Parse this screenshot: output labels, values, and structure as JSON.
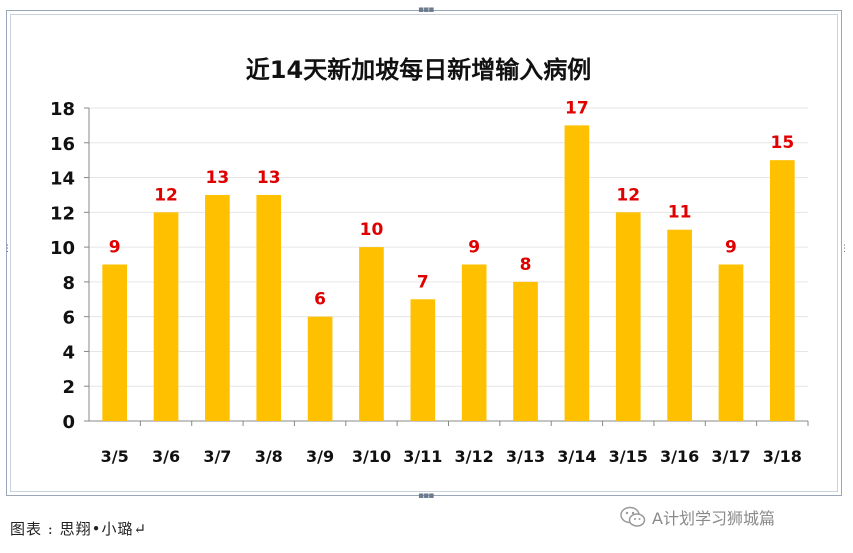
{
  "chart_data": {
    "type": "bar",
    "title": "近14天新加坡每日新增输入病例",
    "categories": [
      "3/5",
      "3/6",
      "3/7",
      "3/8",
      "3/9",
      "3/10",
      "3/11",
      "3/12",
      "3/13",
      "3/14",
      "3/15",
      "3/16",
      "3/17",
      "3/18"
    ],
    "values": [
      9,
      12,
      13,
      13,
      6,
      10,
      7,
      9,
      8,
      17,
      12,
      11,
      9,
      15
    ],
    "ylim": [
      0,
      18
    ],
    "yticks": [
      0,
      2,
      4,
      6,
      8,
      10,
      12,
      14,
      16,
      18
    ],
    "grid": true,
    "bar_color": "#ffc000",
    "label_color": "#e00000"
  },
  "caption": "图表 : 思翔•小璐↵",
  "watermark": "A计划学习狮城篇",
  "icons": {
    "watermark_icon": "wechat-icon"
  }
}
